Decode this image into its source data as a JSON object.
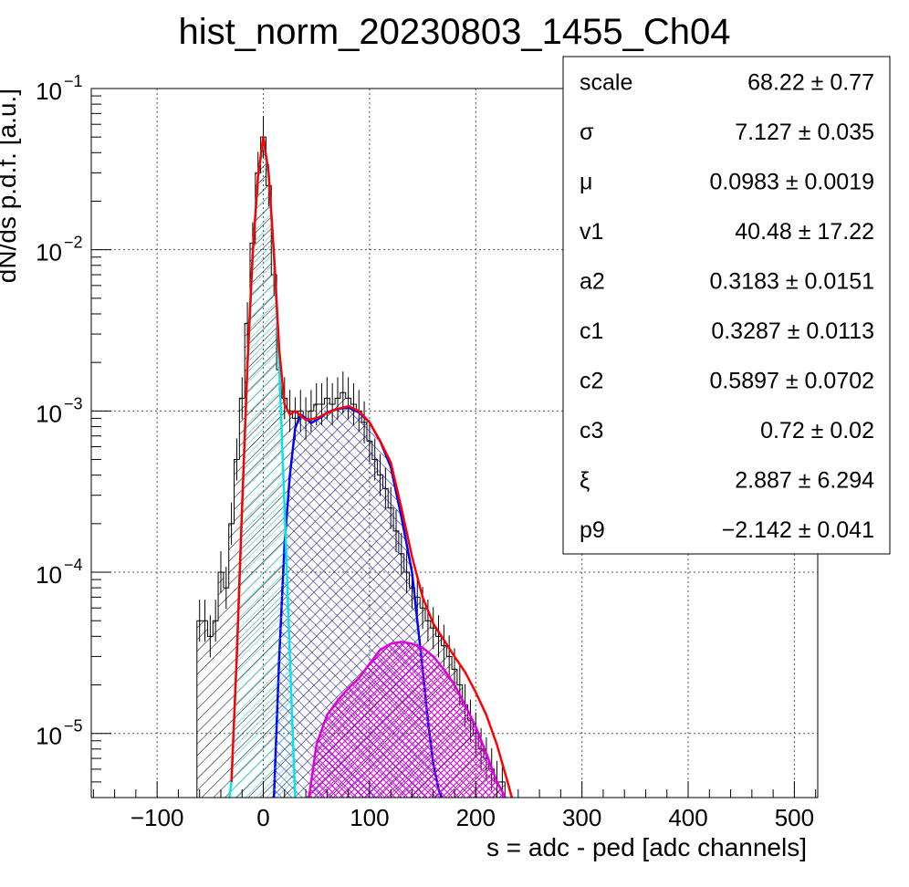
{
  "chart_data": {
    "type": "histogram-fit",
    "title": "hist_norm_20230803_1455_Ch04",
    "xlabel": "s = adc - ped [adc channels]",
    "ylabel": "dN/ds p.d.f. [a.u.]",
    "xlim": [
      -162,
      522
    ],
    "ylim": [
      4e-06,
      0.1
    ],
    "ylog": true,
    "grid": true,
    "x_ticks": [
      {
        "value": -100,
        "label": "−100"
      },
      {
        "value": 0,
        "label": "0"
      },
      {
        "value": 100,
        "label": "100"
      },
      {
        "value": 200,
        "label": "200"
      },
      {
        "value": 300,
        "label": "300"
      },
      {
        "value": 400,
        "label": "400"
      },
      {
        "value": 500,
        "label": "500"
      }
    ],
    "y_ticks": [
      {
        "value": 0.1,
        "base": "10",
        "exp": "−1"
      },
      {
        "value": 0.01,
        "base": "10",
        "exp": "−2"
      },
      {
        "value": 0.001,
        "base": "10",
        "exp": "−3"
      },
      {
        "value": 0.0001,
        "base": "10",
        "exp": "−4"
      },
      {
        "value": 1e-05,
        "base": "10",
        "exp": "−5"
      }
    ],
    "histogram": {
      "name": "data",
      "color": "#000000",
      "x": [
        -60,
        -55,
        -50,
        -45,
        -40,
        -35,
        -30,
        -25,
        -20,
        -15,
        -10,
        -5,
        0,
        5,
        10,
        15,
        20,
        25,
        30,
        35,
        40,
        45,
        50,
        55,
        60,
        65,
        70,
        75,
        80,
        85,
        90,
        95,
        100,
        105,
        110,
        115,
        120,
        125,
        130,
        135,
        140,
        145,
        150,
        155,
        160,
        165,
        170,
        175,
        180,
        185,
        190,
        195,
        200,
        205,
        210,
        215,
        220,
        225
      ],
      "y": [
        5e-05,
        5e-05,
        4e-05,
        5e-05,
        0.0001,
        8e-05,
        0.0002,
        0.0005,
        0.0012,
        0.0035,
        0.011,
        0.03,
        0.05,
        0.025,
        0.007,
        0.0018,
        0.0012,
        0.001,
        0.0009,
        0.001,
        0.0009,
        0.001,
        0.0011,
        0.0011,
        0.0012,
        0.0011,
        0.0012,
        0.0013,
        0.0012,
        0.0011,
        0.001,
        0.00085,
        0.00065,
        0.0005,
        0.0004,
        0.00033,
        0.00025,
        0.00018,
        0.00013,
        0.0001,
        8e-05,
        7e-05,
        6e-05,
        5e-05,
        4.5e-05,
        4e-05,
        3.5e-05,
        3e-05,
        2.5e-05,
        2e-05,
        1.5e-05,
        1.2e-05,
        1e-05,
        8e-06,
        7e-06,
        6e-06,
        5e-06,
        5e-06
      ]
    },
    "series": [
      {
        "name": "total-fit",
        "color": "#ff0000",
        "x": [
          -30,
          -25,
          -20,
          -15,
          -10,
          -5,
          0,
          5,
          10,
          15,
          20,
          25,
          30,
          40,
          50,
          60,
          70,
          80,
          90,
          100,
          110,
          120,
          130,
          140,
          150,
          160,
          170,
          180,
          190,
          200,
          210,
          220,
          230,
          234
        ],
        "y": [
          5e-06,
          3e-05,
          0.00025,
          0.0019,
          0.0094,
          0.0285,
          0.05,
          0.03,
          0.0095,
          0.0024,
          0.0011,
          0.00095,
          0.001,
          0.00088,
          0.0009,
          0.00097,
          0.00103,
          0.00107,
          0.001,
          0.00085,
          0.00065,
          0.00048,
          0.00025,
          0.000125,
          7e-05,
          4.8e-05,
          3.8e-05,
          3e-05,
          2.4e-05,
          1.8e-05,
          1.3e-05,
          8.5e-06,
          5e-06,
          4e-06
        ]
      },
      {
        "name": "pedestal-component",
        "color": "#00e5ee",
        "x": [
          -32,
          -30,
          -25,
          -20,
          -15,
          -10,
          -5,
          0,
          5,
          10,
          15,
          20,
          25,
          30
        ],
        "y": [
          4e-06,
          5e-06,
          3e-05,
          0.00025,
          0.0019,
          0.0094,
          0.0285,
          0.048,
          0.0285,
          0.0094,
          0.0019,
          0.00025,
          3e-05,
          4e-06
        ]
      },
      {
        "name": "single-pe-component",
        "color": "#0000ff",
        "x": [
          10,
          15,
          20,
          25,
          30,
          35,
          40,
          45,
          50,
          55,
          60,
          70,
          80,
          90,
          100,
          110,
          120,
          130,
          140,
          145,
          150,
          155,
          160,
          165,
          168
        ],
        "y": [
          4e-06,
          3e-05,
          0.00015,
          0.0004,
          0.00078,
          0.00095,
          0.0009,
          0.00084,
          0.00088,
          0.00092,
          0.00098,
          0.00103,
          0.00105,
          0.00098,
          0.00085,
          0.00065,
          0.00045,
          0.00022,
          0.0001,
          5e-05,
          2.5e-05,
          1.2e-05,
          6.5e-06,
          4.5e-06,
          4e-06
        ]
      },
      {
        "name": "multi-pe-component",
        "color": "#dd00dd",
        "x": [
          43,
          50,
          60,
          70,
          80,
          90,
          100,
          110,
          120,
          130,
          140,
          150,
          160,
          170,
          180,
          190,
          200,
          210,
          220,
          228
        ],
        "y": [
          4e-06,
          8.5e-06,
          1.3e-05,
          1.6e-05,
          1.9e-05,
          2.2e-05,
          2.7e-05,
          3.3e-05,
          3.6e-05,
          3.7e-05,
          3.6e-05,
          3.4e-05,
          3e-05,
          2.5e-05,
          2e-05,
          1.5e-05,
          1.1e-05,
          7.5e-06,
          5e-06,
          4e-06
        ]
      }
    ],
    "stats_box": {
      "rows": [
        {
          "name": "scale",
          "value": "68.22 ± 0.77"
        },
        {
          "name": "σ",
          "value": "7.127 ± 0.035"
        },
        {
          "name": "μ",
          "value": "0.0983 ± 0.0019"
        },
        {
          "name": "v1",
          "value": "40.48 ± 17.22"
        },
        {
          "name": "a2",
          "value": "0.3183 ± 0.0151"
        },
        {
          "name": "c1",
          "value": "0.3287 ± 0.0113"
        },
        {
          "name": "c2",
          "value": "0.5897 ± 0.0702"
        },
        {
          "name": "c3",
          "value": "0.72 ± 0.02"
        },
        {
          "name": "ξ",
          "value": "2.887 ± 6.294"
        },
        {
          "name": "p9",
          "value": "−2.142 ± 0.041"
        }
      ]
    }
  }
}
